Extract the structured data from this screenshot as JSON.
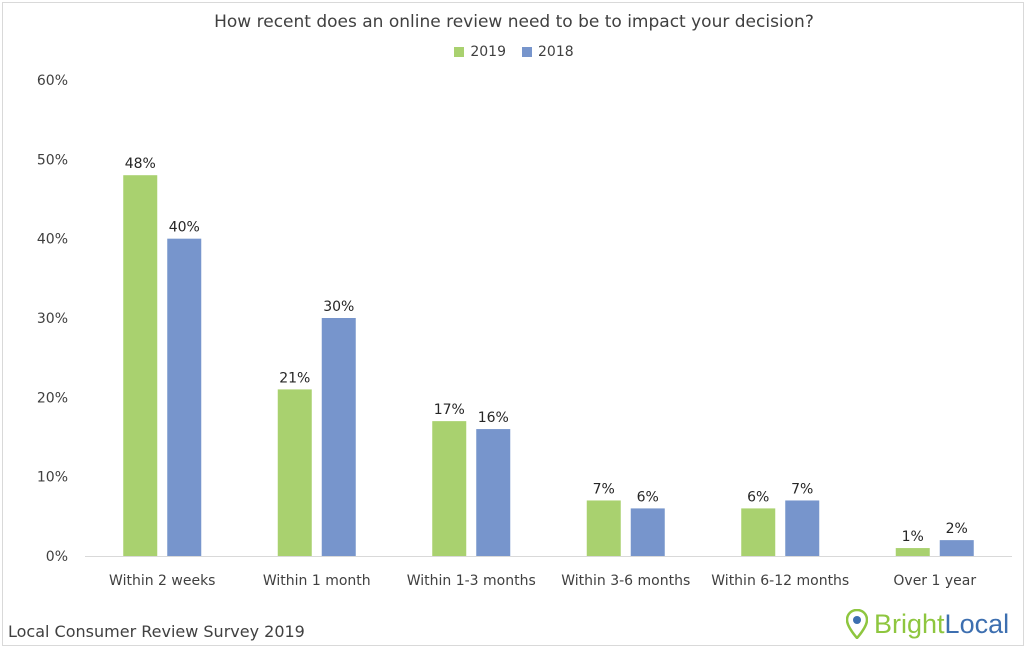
{
  "chart_data": {
    "type": "bar",
    "title": "How recent does an online review need to be to impact your decision?",
    "categories": [
      "Within 2 weeks",
      "Within 1 month",
      "Within 1-3 months",
      "Within 3-6 months",
      "Within 6-12 months",
      "Over 1 year"
    ],
    "series": [
      {
        "name": "2019",
        "color": "#a9d16f",
        "values": [
          48,
          21,
          17,
          7,
          6,
          1
        ],
        "labels": [
          "48%",
          "21%",
          "17%",
          "7%",
          "6%",
          "1%"
        ]
      },
      {
        "name": "2018",
        "color": "#7795cc",
        "values": [
          40,
          30,
          16,
          6,
          7,
          2
        ],
        "labels": [
          "40%",
          "30%",
          "16%",
          "6%",
          "7%",
          "2%"
        ]
      }
    ],
    "yticks": [
      "0%",
      "10%",
      "20%",
      "30%",
      "40%",
      "50%",
      "60%"
    ],
    "ylim": [
      0,
      60
    ],
    "legend_position": "top-center",
    "grid": false
  },
  "footer": {
    "source": "Local Consumer Review Survey 2019",
    "brand_part1": "Bright",
    "brand_part2": "Local",
    "brand_icon": "map-pin-icon"
  }
}
